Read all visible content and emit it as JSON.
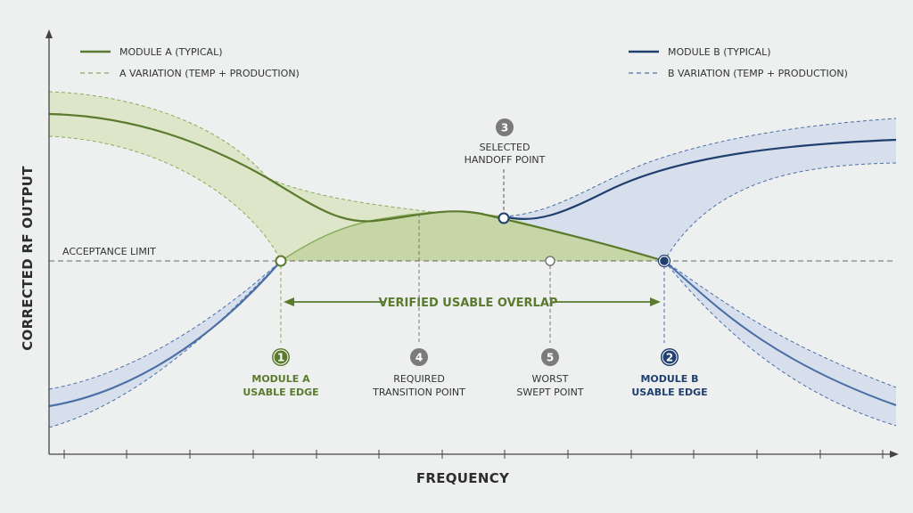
{
  "colors": {
    "background": "#eef0f0",
    "module_a": "#5a7a2e",
    "module_a_light": "#8aab5c",
    "module_a_fill": "#dde6c8",
    "module_b": "#1f3f6e",
    "module_b_light": "#4a6fa5",
    "module_b_fill": "#d6dfeb",
    "overlap_fill": "#c2d2a0",
    "grey_badge": "#7b7b7b",
    "axis": "#444444",
    "limit_line": "#666666"
  },
  "axes": {
    "y_label": "CORRECTED RF OUTPUT",
    "x_label": "FREQUENCY"
  },
  "legend": {
    "a_typical": "MODULE A (TYPICAL)",
    "a_variation": "A VARIATION (TEMP + PRODUCTION)",
    "b_typical": "MODULE B (TYPICAL)",
    "b_variation": "B VARIATION (TEMP + PRODUCTION)"
  },
  "acceptance_limit": "ACCEPTANCE LIMIT",
  "overlap_label": "VERIFIED USABLE OVERLAP",
  "markers": [
    {
      "num": "1",
      "line1": "MODULE A",
      "line2": "USABLE EDGE",
      "style": "a"
    },
    {
      "num": "4",
      "line1": "REQUIRED",
      "line2": "TRANSITION POINT",
      "style": "grey"
    },
    {
      "num": "5",
      "line1": "WORST",
      "line2": "SWEPT POINT",
      "style": "grey"
    },
    {
      "num": "2",
      "line1": "MODULE B",
      "line2": "USABLE EDGE",
      "style": "b"
    }
  ],
  "handoff": {
    "num": "3",
    "line1": "SELECTED",
    "line2": "HANDOFF POINT"
  }
}
